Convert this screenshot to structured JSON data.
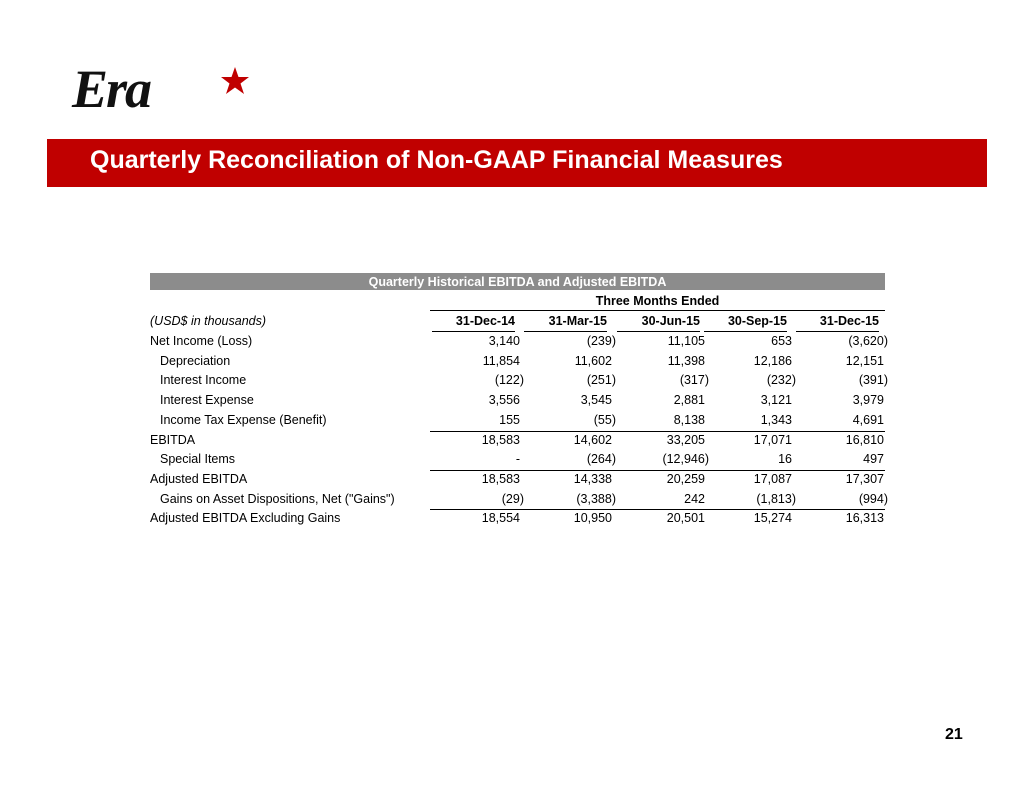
{
  "header": {
    "logo": "Era",
    "title": "Quarterly Reconciliation of Non-GAAP Financial Measures"
  },
  "table": {
    "title": "Quarterly Historical EBITDA and Adjusted EBITDA",
    "period": "Three Months Ended",
    "unit": "(USD$ in thousands)",
    "columns": [
      "31-Dec-14",
      "31-Mar-15",
      "30-Jun-15",
      "30-Sep-15",
      "31-Dec-15"
    ],
    "rows": [
      [
        "Net Income (Loss)",
        "3,140",
        "(239)",
        "11,105",
        "653",
        "(3,620)"
      ],
      [
        "Depreciation",
        "11,854",
        "11,602",
        "11,398",
        "12,186",
        "12,151"
      ],
      [
        "Interest Income",
        "(122)",
        "(251)",
        "(317)",
        "(232)",
        "(391)"
      ],
      [
        "Interest Expense",
        "3,556",
        "3,545",
        "2,881",
        "3,121",
        "3,979"
      ],
      [
        "Income Tax Expense (Benefit)",
        "155",
        "(55)",
        "8,138",
        "1,343",
        "4,691"
      ],
      [
        "EBITDA",
        "18,583",
        "14,602",
        "33,205",
        "17,071",
        "16,810"
      ],
      [
        "Special Items",
        "-",
        "(264)",
        "(12,946)",
        "16",
        "497"
      ],
      [
        "Adjusted EBITDA",
        "18,583",
        "14,338",
        "20,259",
        "17,087",
        "17,307"
      ],
      [
        "Gains on Asset Dispositions, Net (\"Gains\")",
        "(29)",
        "(3,388)",
        "242",
        "(1,813)",
        "(994)"
      ],
      [
        "Adjusted EBITDA Excluding Gains",
        "18,554",
        "10,950",
        "20,501",
        "15,274",
        "16,313"
      ]
    ]
  },
  "footer": {
    "page": "21"
  }
}
